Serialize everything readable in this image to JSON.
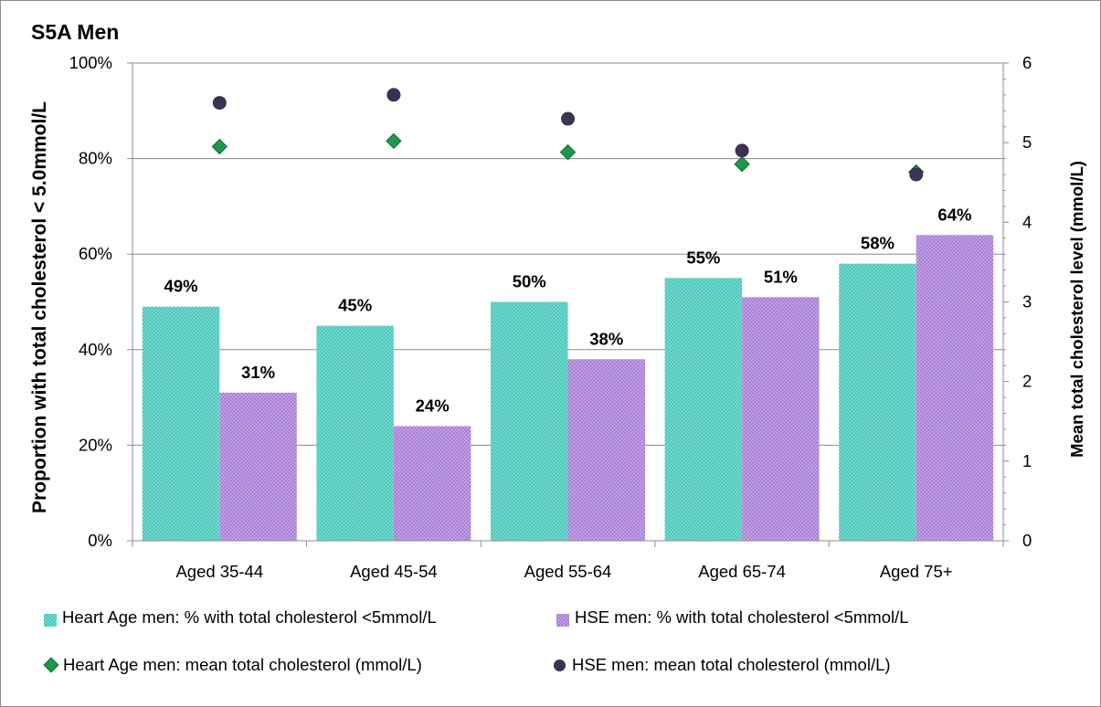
{
  "title": "S5A Men",
  "chart_data": {
    "type": "bar",
    "categories": [
      "Aged 35-44",
      "Aged 45-54",
      "Aged 55-64",
      "Aged 65-74",
      "Aged 75+"
    ],
    "series": [
      {
        "name": "Heart Age men: % with total cholesterol <5mmol/L",
        "kind": "bar",
        "axis": "left",
        "values": [
          49,
          45,
          50,
          55,
          58
        ],
        "labels": [
          "49%",
          "45%",
          "50%",
          "55%",
          "58%"
        ]
      },
      {
        "name": "HSE men: % with total cholesterol <5mmol/L",
        "kind": "bar",
        "axis": "left",
        "values": [
          31,
          24,
          38,
          51,
          64
        ],
        "labels": [
          "31%",
          "24%",
          "38%",
          "51%",
          "64%"
        ]
      },
      {
        "name": "Heart Age men: mean total cholesterol (mmol/L)",
        "kind": "diamond",
        "axis": "right",
        "values": [
          4.95,
          5.02,
          4.88,
          4.73,
          4.63
        ]
      },
      {
        "name": "HSE men: mean total cholesterol (mmol/L)",
        "kind": "circle",
        "axis": "right",
        "values": [
          5.5,
          5.6,
          5.3,
          4.9,
          4.6
        ]
      }
    ],
    "ylabel": "Proportion with total cholesterol < 5.0mmol/L",
    "ylabel_right": "Mean total cholesterol level (mmol/L)",
    "ylim": [
      0,
      100
    ],
    "ylim_right": [
      0,
      6
    ],
    "yticks": [
      "0%",
      "20%",
      "40%",
      "60%",
      "80%",
      "100%"
    ],
    "yticks_right": [
      "0",
      "1",
      "2",
      "3",
      "4",
      "5",
      "6"
    ],
    "grid": true,
    "legend": "bottom",
    "colors": {
      "heart_age_bar": "#5fd1c4",
      "hse_bar": "#b48fdc",
      "heart_age_marker": "#1a9a4a",
      "hse_marker": "#3a3353"
    }
  }
}
